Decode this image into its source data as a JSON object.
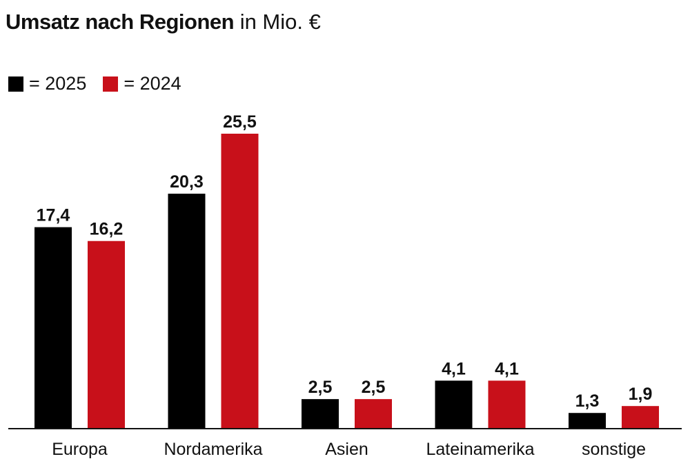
{
  "header": {
    "title_bold": "Umsatz nach Regionen",
    "title_unit": "in Mio. €"
  },
  "legend": [
    {
      "label": "= 2025",
      "color": "#000000"
    },
    {
      "label": "= 2024",
      "color": "#c8101a"
    }
  ],
  "chart_data": {
    "type": "bar",
    "title": "Umsatz nach Regionen in Mio. €",
    "categories": [
      "Europa",
      "Nordamerika",
      "Asien",
      "Lateinamerika",
      "sonstige"
    ],
    "series": [
      {
        "name": "2025",
        "color": "#000000",
        "values": [
          17.4,
          20.3,
          2.5,
          4.1,
          1.3
        ],
        "labels": [
          "17,4",
          "20,3",
          "2,5",
          "4,1",
          "1,3"
        ]
      },
      {
        "name": "2024",
        "color": "#c8101a",
        "values": [
          16.2,
          25.5,
          2.5,
          4.1,
          1.9
        ],
        "labels": [
          "16,2",
          "25,5",
          "2,5",
          "4,1",
          "1,9"
        ]
      }
    ],
    "ylim": [
      0,
      25.5
    ],
    "grid": false,
    "legend_position": "top-left"
  }
}
